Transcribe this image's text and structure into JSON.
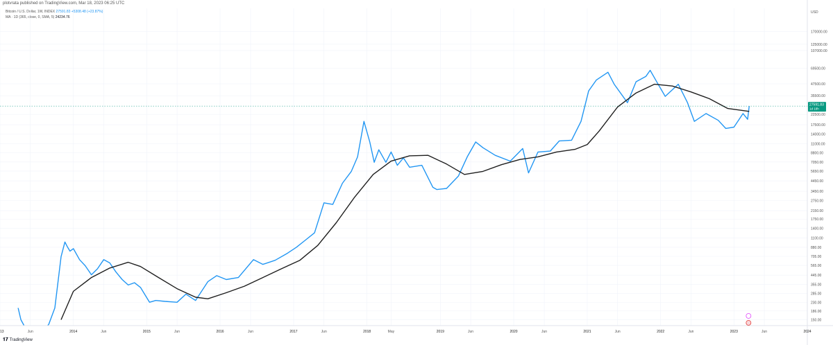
{
  "header": {
    "published_text": "plotvrata published on TradingView.com, Mar 18, 2023 06:25 UTC"
  },
  "legend": {
    "symbol_text": "Bitcoin / U.S. Dollar, 1W, INDEX",
    "symbol_values": "27591.83  +5308.48 (+23.87%)",
    "ma_text": "MA · 1D (365, close, 0, SMA, 5)",
    "ma_value": "24234.76"
  },
  "footer": {
    "brand": "TradingView",
    "logo_icon": "tradingview-logo-icon"
  },
  "colors": {
    "price": "#2196f3",
    "ma": "#1e1e1e",
    "badge_price": "#089981",
    "grid": "#f0f3fa"
  },
  "chart_data": {
    "type": "line",
    "yscale": "log",
    "ylabel": "USD",
    "ylim": [
      130,
      300000
    ],
    "xlim": [
      "2013-01-01",
      "2024-01-01"
    ],
    "y_ticks": [
      "170000.00",
      "125000.00",
      "107000.00",
      "69500.00",
      "47500.00",
      "35500.00",
      "22500.00",
      "17500.00",
      "14000.00",
      "11000.00",
      "8800.00",
      "7050.00",
      "5650.00",
      "4450.00",
      "3450.00",
      "2750.00",
      "2150.00",
      "1750.00",
      "1400.00",
      "1100.00",
      "880.00",
      "705.00",
      "565.00",
      "445.00",
      "355.00",
      "285.00",
      "230.00",
      "186.00",
      "150.00"
    ],
    "y_tick_values": [
      170000,
      125000,
      107000,
      69500,
      47500,
      35500,
      22500,
      17500,
      14000,
      11000,
      8800,
      7050,
      5650,
      4450,
      3450,
      2750,
      2150,
      1750,
      1400,
      1100,
      880,
      705,
      565,
      445,
      355,
      285,
      230,
      186,
      150
    ],
    "x_ticks": [
      "2013",
      "Jun",
      "2014",
      "Jun",
      "2015",
      "Jun",
      "2016",
      "Jun",
      "2017",
      "Jun",
      "2018",
      "May",
      "2019",
      "Jun",
      "2020",
      "Jun",
      "2021",
      "Jun",
      "2022",
      "Jun",
      "2023",
      "Jun",
      "2024"
    ],
    "x_tick_dates": [
      "2013-01-01",
      "2013-06-01",
      "2014-01-01",
      "2014-06-01",
      "2015-01-01",
      "2015-06-01",
      "2016-01-01",
      "2016-06-01",
      "2017-01-01",
      "2017-06-01",
      "2018-01-01",
      "2018-05-01",
      "2019-01-01",
      "2019-06-01",
      "2020-01-01",
      "2020-06-01",
      "2021-01-01",
      "2021-06-01",
      "2022-01-01",
      "2022-06-01",
      "2023-01-01",
      "2023-06-01",
      "2024-01-01"
    ],
    "last_price": {
      "label": "27591.83",
      "sublabel": "1d 18h",
      "value": 27591.83
    },
    "series": [
      {
        "values_desc": "price",
        "dates": [
          "2013-04-01",
          "2013-04-15",
          "2013-05-01",
          "2013-06-01",
          "2013-07-01",
          "2013-08-01",
          "2013-09-01",
          "2013-10-01",
          "2013-11-01",
          "2013-11-20",
          "2013-12-01",
          "2013-12-15",
          "2014-01-01",
          "2014-02-01",
          "2014-03-01",
          "2014-04-01",
          "2014-05-01",
          "2014-06-01",
          "2014-07-01",
          "2014-08-01",
          "2014-09-01",
          "2014-10-01",
          "2014-11-01",
          "2014-12-01",
          "2015-01-15",
          "2015-02-15",
          "2015-04-01",
          "2015-06-01",
          "2015-07-15",
          "2015-09-01",
          "2015-11-01",
          "2015-12-15",
          "2016-02-01",
          "2016-04-01",
          "2016-06-15",
          "2016-08-01",
          "2016-10-01",
          "2016-12-01",
          "2017-01-15",
          "2017-03-01",
          "2017-04-15",
          "2017-06-01",
          "2017-07-15",
          "2017-09-01",
          "2017-10-15",
          "2017-11-15",
          "2017-12-17",
          "2018-01-15",
          "2018-02-06",
          "2018-03-01",
          "2018-04-05",
          "2018-05-01",
          "2018-06-01",
          "2018-07-01",
          "2018-08-01",
          "2018-10-01",
          "2018-11-25",
          "2018-12-15",
          "2019-02-01",
          "2019-04-01",
          "2019-05-15",
          "2019-06-26",
          "2019-08-01",
          "2019-10-01",
          "2019-12-15",
          "2020-02-15",
          "2020-03-15",
          "2020-05-01",
          "2020-07-01",
          "2020-08-15",
          "2020-10-15",
          "2020-12-01",
          "2021-01-08",
          "2021-02-15",
          "2021-04-14",
          "2021-05-15",
          "2021-07-20",
          "2021-09-01",
          "2021-10-20",
          "2021-11-10",
          "2021-12-15",
          "2022-01-24",
          "2022-03-30",
          "2022-05-15",
          "2022-06-18",
          "2022-08-15",
          "2022-10-15",
          "2022-11-21",
          "2023-01-01",
          "2023-02-15",
          "2023-03-10",
          "2023-03-18"
        ],
        "values": [
          200,
          150,
          130,
          110,
          90,
          110,
          135,
          200,
          700,
          1000,
          900,
          800,
          850,
          650,
          560,
          450,
          520,
          650,
          600,
          480,
          400,
          350,
          370,
          330,
          230,
          240,
          235,
          230,
          280,
          240,
          380,
          440,
          400,
          420,
          650,
          580,
          640,
          760,
          880,
          1050,
          1250,
          2600,
          2500,
          4200,
          5600,
          8000,
          19000,
          11500,
          7000,
          9500,
          7000,
          9000,
          6500,
          7800,
          6200,
          6500,
          3800,
          3600,
          3700,
          5000,
          8000,
          11500,
          10000,
          8300,
          7200,
          9800,
          5400,
          9000,
          9200,
          11800,
          12000,
          19000,
          40000,
          52000,
          63000,
          47000,
          30000,
          50000,
          57000,
          66000,
          49000,
          35000,
          47000,
          30000,
          19000,
          23000,
          19500,
          16000,
          16500,
          23000,
          20000,
          27591
        ]
      },
      {
        "values_desc": "ma",
        "dates": [
          "2013-11-01",
          "2014-01-01",
          "2014-04-01",
          "2014-07-01",
          "2014-10-01",
          "2014-12-01",
          "2015-03-01",
          "2015-06-01",
          "2015-09-01",
          "2015-11-01",
          "2016-02-01",
          "2016-05-01",
          "2016-08-01",
          "2016-11-01",
          "2017-02-01",
          "2017-05-01",
          "2017-08-01",
          "2017-11-01",
          "2018-02-01",
          "2018-05-01",
          "2018-08-01",
          "2018-11-01",
          "2019-02-01",
          "2019-05-01",
          "2019-08-01",
          "2019-11-01",
          "2020-02-01",
          "2020-05-01",
          "2020-08-01",
          "2020-11-01",
          "2021-01-01",
          "2021-03-01",
          "2021-06-01",
          "2021-09-01",
          "2021-12-01",
          "2022-03-01",
          "2022-06-01",
          "2022-09-01",
          "2022-12-01",
          "2023-03-18"
        ],
        "values": [
          150,
          300,
          420,
          530,
          610,
          550,
          420,
          320,
          260,
          250,
          290,
          340,
          420,
          520,
          640,
          920,
          1600,
          3000,
          5200,
          7200,
          8200,
          8300,
          6700,
          5200,
          5600,
          6600,
          7500,
          8000,
          9000,
          9600,
          10800,
          15000,
          27000,
          38000,
          47000,
          45000,
          39000,
          33000,
          26000,
          24234
        ]
      }
    ]
  }
}
